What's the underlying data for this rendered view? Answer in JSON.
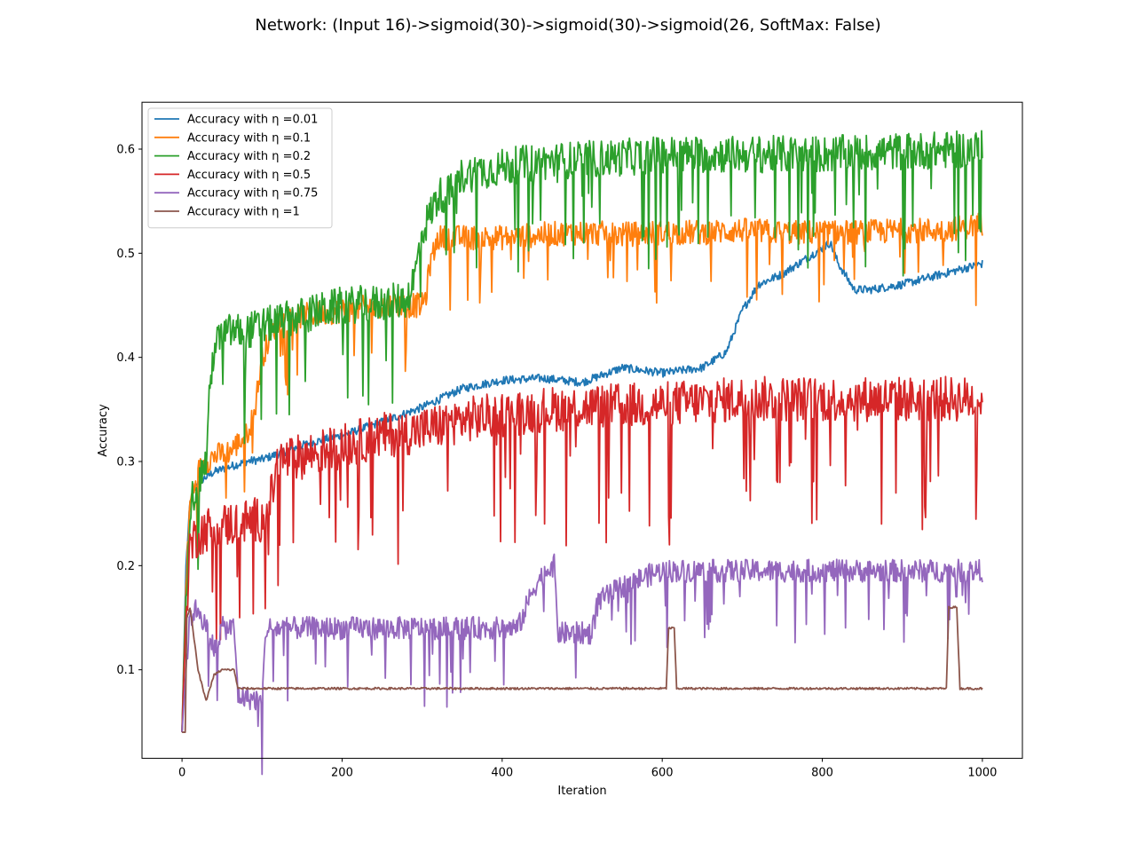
{
  "chart_data": {
    "type": "line",
    "title": "Network: (Input 16)->sigmoid(30)->sigmoid(30)->sigmoid(26, SoftMax: False)",
    "xlabel": "Iteration",
    "ylabel": "Accuracy",
    "xlim": [
      -50,
      1050
    ],
    "ylim": [
      0.015,
      0.645
    ],
    "xticks": [
      0,
      200,
      400,
      600,
      800,
      1000
    ],
    "yticks": [
      0.1,
      0.2,
      0.3,
      0.4,
      0.5,
      0.6
    ],
    "xtick_labels": [
      "0",
      "200",
      "400",
      "600",
      "800",
      "1000"
    ],
    "ytick_labels": [
      "0.1",
      "0.2",
      "0.3",
      "0.4",
      "0.5",
      "0.6"
    ],
    "grid": false,
    "legend_position": "top-left",
    "series": [
      {
        "name": "Accuracy with η =0.01",
        "color": "#1f77b4",
        "x": [
          0,
          5,
          10,
          20,
          30,
          40,
          60,
          80,
          100,
          130,
          160,
          200,
          250,
          300,
          350,
          400,
          450,
          500,
          550,
          600,
          650,
          680,
          700,
          720,
          750,
          800,
          810,
          820,
          840,
          860,
          900,
          950,
          1000
        ],
        "y": [
          0.04,
          0.2,
          0.26,
          0.28,
          0.285,
          0.29,
          0.295,
          0.3,
          0.302,
          0.31,
          0.318,
          0.325,
          0.338,
          0.352,
          0.37,
          0.378,
          0.38,
          0.376,
          0.39,
          0.385,
          0.39,
          0.405,
          0.445,
          0.47,
          0.48,
          0.505,
          0.51,
          0.49,
          0.465,
          0.465,
          0.47,
          0.48,
          0.49
        ],
        "noise": 0.004
      },
      {
        "name": "Accuracy with η =0.1",
        "color": "#ff7f0e",
        "x": [
          0,
          5,
          10,
          20,
          30,
          40,
          60,
          80,
          90,
          100,
          110,
          120,
          150,
          200,
          250,
          300,
          305,
          310,
          320,
          350,
          400,
          450,
          500,
          550,
          600,
          650,
          700,
          750,
          800,
          850,
          900,
          950,
          1000
        ],
        "y": [
          0.04,
          0.18,
          0.26,
          0.29,
          0.3,
          0.305,
          0.31,
          0.325,
          0.345,
          0.4,
          0.42,
          0.435,
          0.44,
          0.445,
          0.45,
          0.45,
          0.46,
          0.49,
          0.515,
          0.515,
          0.515,
          0.518,
          0.52,
          0.518,
          0.52,
          0.52,
          0.522,
          0.52,
          0.52,
          0.52,
          0.522,
          0.522,
          0.528
        ],
        "noise": 0.012
      },
      {
        "name": "Accuracy with η =0.2",
        "color": "#2ca02c",
        "x": [
          0,
          5,
          10,
          20,
          30,
          35,
          40,
          50,
          60,
          80,
          100,
          150,
          200,
          250,
          280,
          290,
          300,
          320,
          340,
          350,
          380,
          420,
          450,
          500,
          550,
          600,
          700,
          800,
          900,
          1000
        ],
        "y": [
          0.04,
          0.17,
          0.26,
          0.28,
          0.3,
          0.37,
          0.41,
          0.42,
          0.425,
          0.425,
          0.43,
          0.44,
          0.45,
          0.452,
          0.455,
          0.475,
          0.52,
          0.555,
          0.56,
          0.575,
          0.58,
          0.585,
          0.588,
          0.59,
          0.592,
          0.595,
          0.595,
          0.595,
          0.598,
          0.6
        ],
        "noise": 0.018
      },
      {
        "name": "Accuracy with η =0.5",
        "color": "#d62728",
        "x": [
          0,
          5,
          10,
          20,
          30,
          60,
          100,
          110,
          120,
          150,
          200,
          250,
          300,
          350,
          400,
          450,
          500,
          600,
          700,
          800,
          900,
          1000
        ],
        "y": [
          0.04,
          0.15,
          0.22,
          0.23,
          0.235,
          0.24,
          0.245,
          0.26,
          0.3,
          0.305,
          0.315,
          0.325,
          0.33,
          0.34,
          0.345,
          0.35,
          0.352,
          0.355,
          0.36,
          0.36,
          0.36,
          0.36
        ],
        "noise": 0.022
      },
      {
        "name": "Accuracy with η =0.75",
        "color": "#9467bd",
        "x": [
          0,
          5,
          10,
          20,
          30,
          40,
          50,
          65,
          70,
          100,
          105,
          200,
          300,
          400,
          420,
          430,
          440,
          460,
          465,
          470,
          500,
          510,
          520,
          550,
          580,
          600,
          700,
          800,
          900,
          1000
        ],
        "y": [
          0.04,
          0.1,
          0.15,
          0.16,
          0.14,
          0.12,
          0.14,
          0.14,
          0.075,
          0.07,
          0.14,
          0.14,
          0.14,
          0.14,
          0.14,
          0.16,
          0.18,
          0.2,
          0.2,
          0.135,
          0.135,
          0.135,
          0.165,
          0.18,
          0.19,
          0.195,
          0.195,
          0.195,
          0.195,
          0.195
        ],
        "noise": 0.011
      },
      {
        "name": "Accuracy with η =1",
        "color": "#8c564b",
        "x": [
          0,
          4,
          6,
          10,
          15,
          20,
          30,
          40,
          50,
          60,
          65,
          70,
          100,
          200,
          300,
          400,
          500,
          605,
          608,
          615,
          618,
          700,
          800,
          900,
          955,
          958,
          968,
          972,
          1000
        ],
        "y": [
          0.04,
          0.04,
          0.15,
          0.16,
          0.13,
          0.1,
          0.07,
          0.095,
          0.1,
          0.1,
          0.1,
          0.082,
          0.082,
          0.082,
          0.082,
          0.082,
          0.082,
          0.082,
          0.14,
          0.14,
          0.082,
          0.082,
          0.082,
          0.082,
          0.082,
          0.16,
          0.16,
          0.082,
          0.082
        ],
        "noise": 0.001
      }
    ]
  }
}
